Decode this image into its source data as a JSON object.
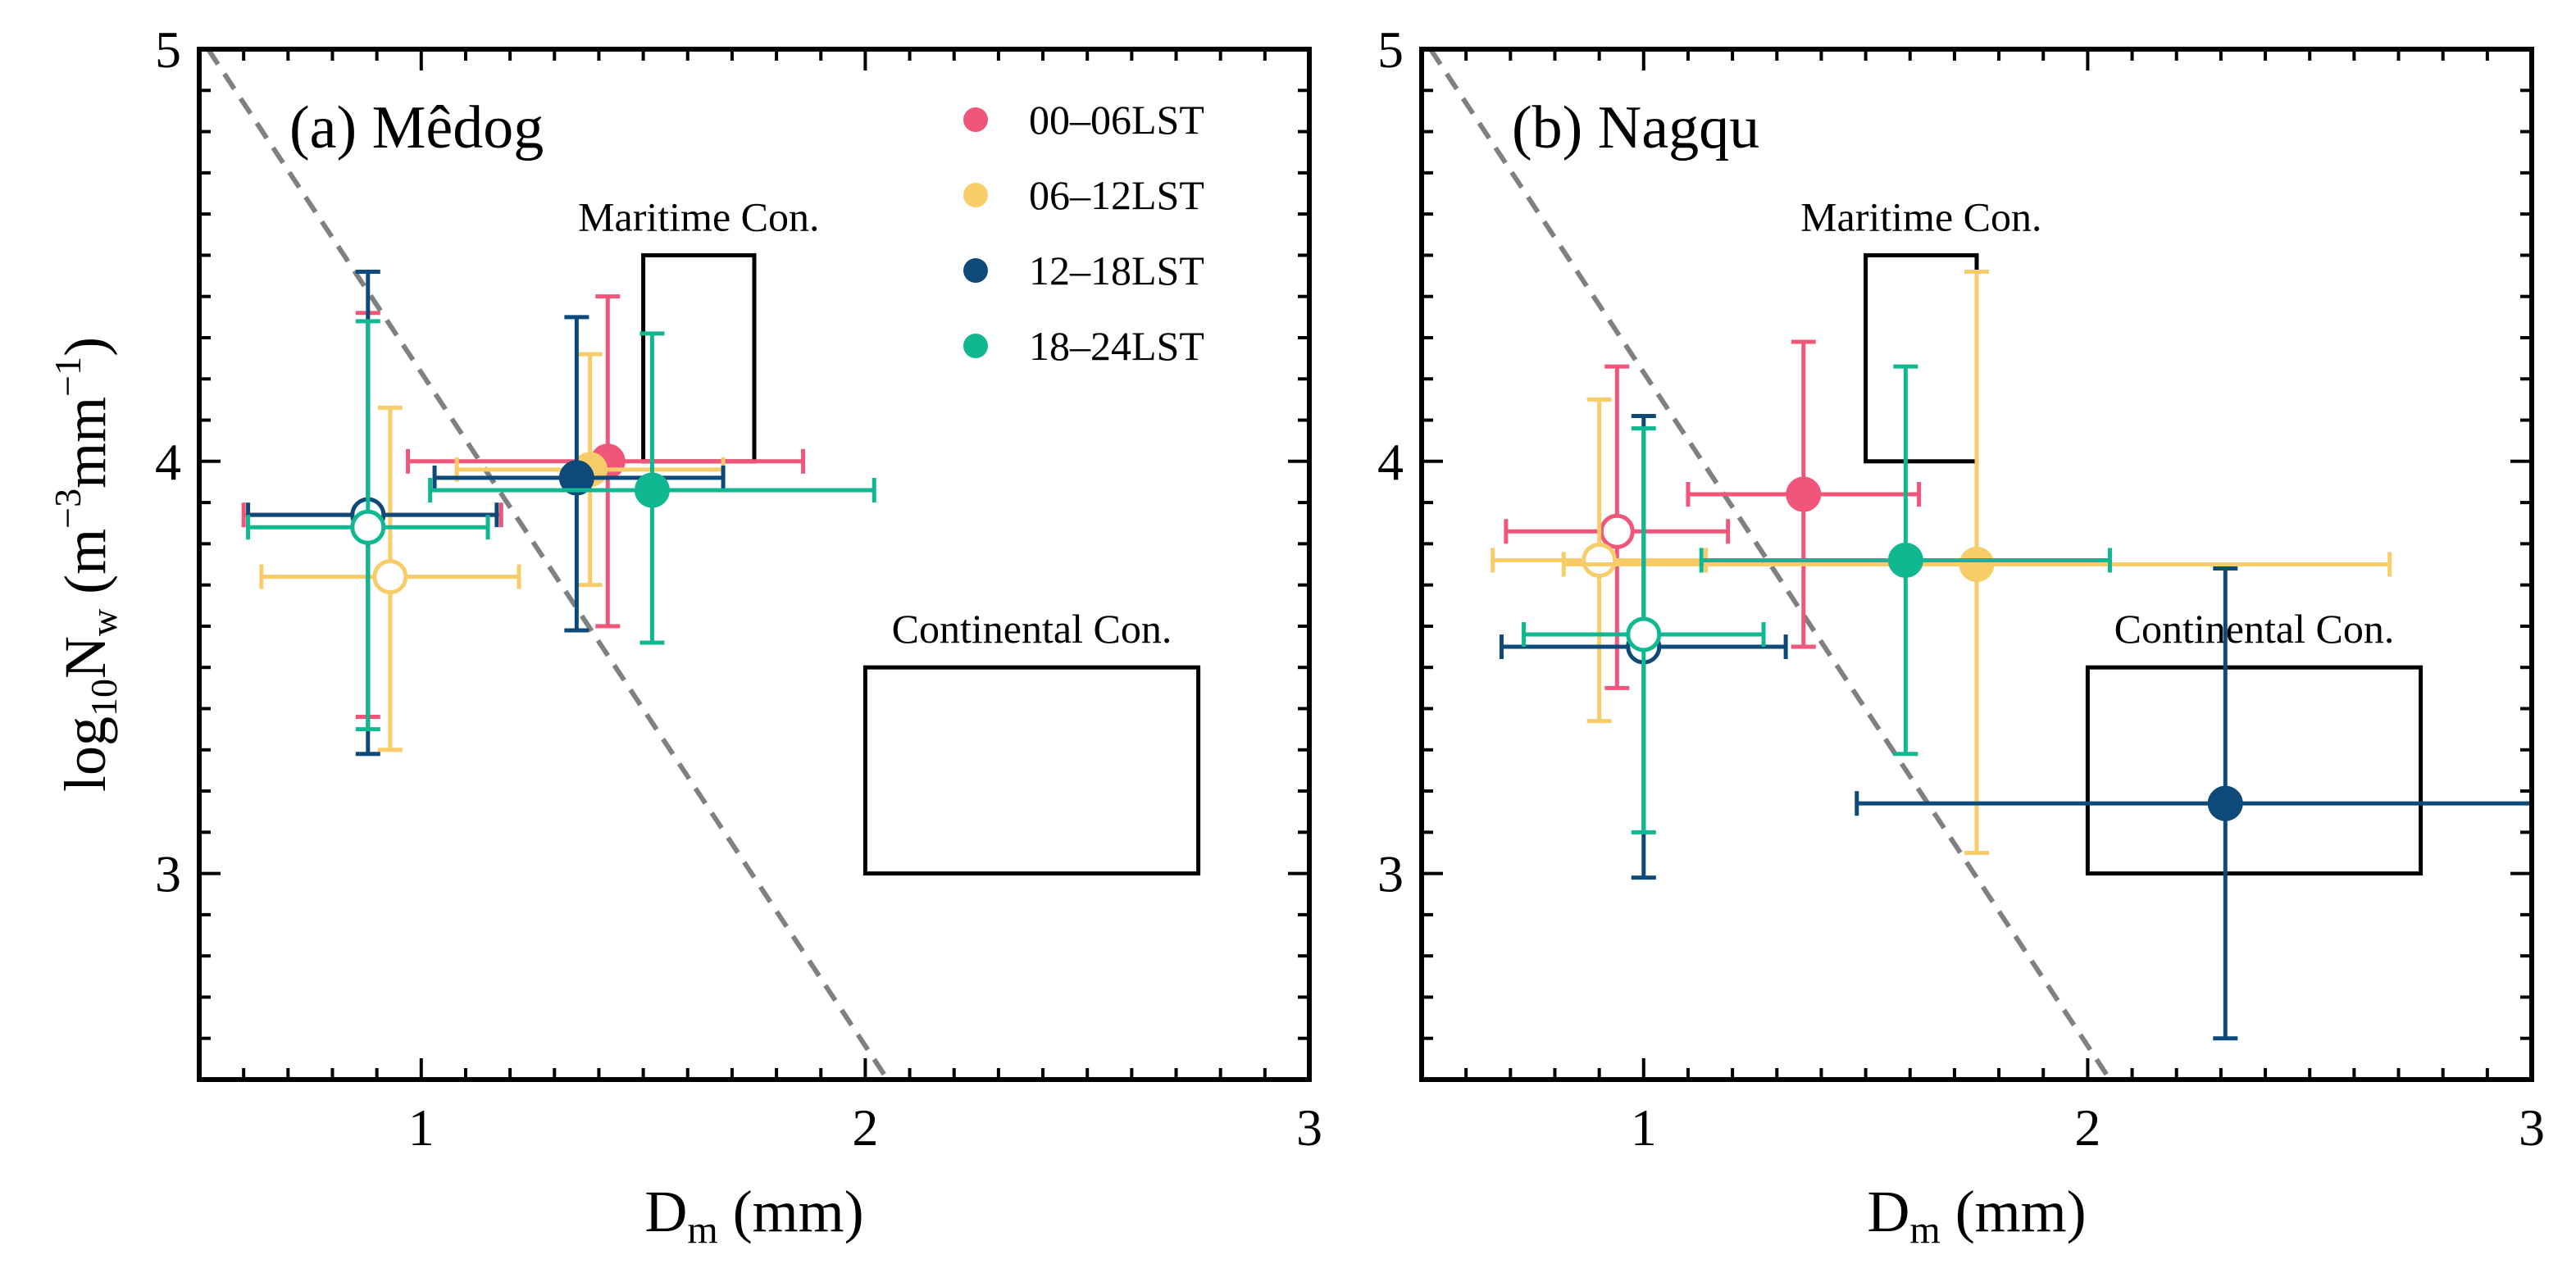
{
  "colors": {
    "pink": "#f0557a",
    "yellow": "#f9cc6a",
    "navy": "#0d4a7a",
    "teal": "#10b891",
    "axis": "#000000",
    "divider": "#808080"
  },
  "chart_data": [
    {
      "type": "scatter",
      "panel": "(a) Mêdog",
      "title": "(a) Mêdog",
      "xlabel": "D",
      "xlabel_sub": "m",
      "xlabel_unit": " (mm)",
      "ylabel_prefix": "log",
      "ylabel_sub": "10",
      "ylabel_var": "N",
      "ylabel_var_sub": "w",
      "ylabel_unit_open": " (m",
      "ylabel_unit_exp1": "−3",
      "ylabel_unit_mid": "mm",
      "ylabel_unit_exp2": "−1",
      "ylabel_unit_close": ")",
      "xlim": [
        0.5,
        3.0
      ],
      "ylim": [
        2.5,
        5.0
      ],
      "xticks": [
        1,
        2,
        3
      ],
      "yticks": [
        3,
        4,
        5
      ],
      "xtick_labels": [
        "1",
        "2",
        "3"
      ],
      "ytick_labels": [
        "3",
        "4",
        "5"
      ],
      "legend": {
        "position": "top-right",
        "entries": [
          {
            "label": "00–06LST",
            "color_key": "pink"
          },
          {
            "label": "06–12LST",
            "color_key": "yellow"
          },
          {
            "label": "12–18LST",
            "color_key": "navy"
          },
          {
            "label": "18–24LST",
            "color_key": "teal"
          }
        ]
      },
      "divider_line": {
        "x1": 0.52,
        "y1": 5.0,
        "x2": 2.05,
        "y2": 2.5,
        "style": "dashed"
      },
      "boxes": [
        {
          "label": "Maritime Con.",
          "x": [
            1.5,
            1.75
          ],
          "y": [
            4.0,
            4.5
          ]
        },
        {
          "label": "Continental Con.",
          "x": [
            2.0,
            2.75
          ],
          "y": [
            3.0,
            3.5
          ]
        }
      ],
      "series": [
        {
          "name": "00–06LST",
          "color_key": "pink",
          "points": [
            {
              "x": 0.88,
              "y": 3.87,
              "xerr": [
                0.6,
                1.18
              ],
              "yerr": [
                3.38,
                4.36
              ],
              "filled": false
            },
            {
              "x": 1.42,
              "y": 4.0,
              "xerr": [
                0.97,
                1.86
              ],
              "yerr": [
                3.6,
                4.4
              ],
              "filled": true
            }
          ]
        },
        {
          "name": "06–12LST",
          "color_key": "yellow",
          "points": [
            {
              "x": 0.93,
              "y": 3.72,
              "xerr": [
                0.64,
                1.22
              ],
              "yerr": [
                3.3,
                4.13
              ],
              "filled": false
            },
            {
              "x": 1.38,
              "y": 3.98,
              "xerr": [
                1.08,
                1.68
              ],
              "yerr": [
                3.7,
                4.26
              ],
              "filled": true
            }
          ]
        },
        {
          "name": "12–18LST",
          "color_key": "navy",
          "points": [
            {
              "x": 0.88,
              "y": 3.87,
              "xerr": [
                0.61,
                1.17
              ],
              "yerr": [
                3.29,
                4.46
              ],
              "filled": false
            },
            {
              "x": 1.35,
              "y": 3.96,
              "xerr": [
                1.03,
                1.68
              ],
              "yerr": [
                3.59,
                4.35
              ],
              "filled": true
            }
          ]
        },
        {
          "name": "18–24LST",
          "color_key": "teal",
          "points": [
            {
              "x": 0.88,
              "y": 3.84,
              "xerr": [
                0.61,
                1.15
              ],
              "yerr": [
                3.35,
                4.34
              ],
              "filled": false
            },
            {
              "x": 1.52,
              "y": 3.93,
              "xerr": [
                1.02,
                2.02
              ],
              "yerr": [
                3.56,
                4.31
              ],
              "filled": true
            }
          ]
        }
      ]
    },
    {
      "type": "scatter",
      "panel": "(b) Nagqu",
      "title": "(b) Nagqu",
      "xlabel": "D",
      "xlabel_sub": "m",
      "xlabel_unit": " (mm)",
      "xlim": [
        0.5,
        3.0
      ],
      "ylim": [
        2.5,
        5.0
      ],
      "xticks": [
        1,
        2,
        3
      ],
      "yticks": [
        3,
        4,
        5
      ],
      "xtick_labels": [
        "1",
        "2",
        "3"
      ],
      "ytick_labels": [
        "3",
        "4",
        "5"
      ],
      "divider_line": {
        "x1": 0.52,
        "y1": 5.0,
        "x2": 2.05,
        "y2": 2.5,
        "style": "dashed"
      },
      "boxes": [
        {
          "label": "Maritime Con.",
          "x": [
            1.5,
            1.75
          ],
          "y": [
            4.0,
            4.5
          ]
        },
        {
          "label": "Continental Con.",
          "x": [
            2.0,
            2.75
          ],
          "y": [
            3.0,
            3.5
          ]
        }
      ],
      "series": [
        {
          "name": "00–06LST",
          "color_key": "pink",
          "points": [
            {
              "x": 0.94,
              "y": 3.83,
              "xerr": [
                0.69,
                1.19
              ],
              "yerr": [
                3.45,
                4.23
              ],
              "filled": false
            },
            {
              "x": 1.36,
              "y": 3.92,
              "xerr": [
                1.1,
                1.62
              ],
              "yerr": [
                3.55,
                4.29
              ],
              "filled": true
            }
          ]
        },
        {
          "name": "06–12LST",
          "color_key": "yellow",
          "points": [
            {
              "x": 0.9,
              "y": 3.76,
              "xerr": [
                0.66,
                1.14
              ],
              "yerr": [
                3.37,
                4.15
              ],
              "filled": false
            },
            {
              "x": 1.75,
              "y": 3.75,
              "xerr": [
                0.82,
                2.68
              ],
              "yerr": [
                3.05,
                4.46
              ],
              "filled": true
            }
          ]
        },
        {
          "name": "12–18LST",
          "color_key": "navy",
          "points": [
            {
              "x": 1.0,
              "y": 3.55,
              "xerr": [
                0.68,
                1.32
              ],
              "yerr": [
                2.99,
                4.11
              ],
              "filled": false
            },
            {
              "x": 2.31,
              "y": 3.17,
              "xerr": [
                1.48,
                3.14
              ],
              "yerr": [
                2.6,
                3.74
              ],
              "filled": true
            }
          ]
        },
        {
          "name": "18–24LST",
          "color_key": "teal",
          "points": [
            {
              "x": 1.0,
              "y": 3.58,
              "xerr": [
                0.73,
                1.27
              ],
              "yerr": [
                3.1,
                4.08
              ],
              "filled": false
            },
            {
              "x": 1.59,
              "y": 3.76,
              "xerr": [
                1.13,
                2.05
              ],
              "yerr": [
                3.29,
                4.23
              ],
              "filled": true
            }
          ]
        }
      ]
    }
  ]
}
